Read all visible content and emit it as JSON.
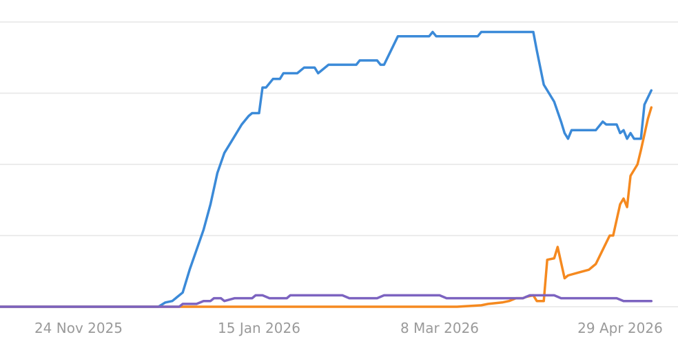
{
  "chart_data": {
    "type": "line",
    "x_axis": {
      "type": "date",
      "range": [
        "2025-10-20",
        "2026-05-08"
      ]
    },
    "ylim": [
      0,
      100
    ],
    "y_gridlines": [
      0,
      25,
      50,
      75,
      100
    ],
    "grid": true,
    "legend": "none",
    "x_ticks": [
      {
        "date": "2025-11-24",
        "label": "24 Nov 2025"
      },
      {
        "date": "2026-01-15",
        "label": "15 Jan 2026"
      },
      {
        "date": "2026-03-08",
        "label": "8 Mar 2026"
      },
      {
        "date": "2026-04-29",
        "label": "29 Apr 2026"
      }
    ],
    "series": [
      {
        "color": "#3b8ad8",
        "points": [
          [
            "2025-10-20",
            0
          ],
          [
            "2025-12-17",
            0
          ],
          [
            "2025-12-19",
            1.5
          ],
          [
            "2025-12-21",
            2
          ],
          [
            "2025-12-24",
            5
          ],
          [
            "2025-12-26",
            13
          ],
          [
            "2025-12-28",
            20
          ],
          [
            "2025-12-30",
            27
          ],
          [
            "2026-01-01",
            36
          ],
          [
            "2026-01-03",
            47
          ],
          [
            "2026-01-05",
            54
          ],
          [
            "2026-01-07",
            58
          ],
          [
            "2026-01-10",
            64
          ],
          [
            "2026-01-12",
            67
          ],
          [
            "2026-01-13",
            68
          ],
          [
            "2026-01-15",
            68
          ],
          [
            "2026-01-16",
            77
          ],
          [
            "2026-01-17",
            77
          ],
          [
            "2026-01-19",
            80
          ],
          [
            "2026-01-21",
            80
          ],
          [
            "2026-01-22",
            82
          ],
          [
            "2026-01-26",
            82
          ],
          [
            "2026-01-28",
            84
          ],
          [
            "2026-01-31",
            84
          ],
          [
            "2026-02-01",
            82
          ],
          [
            "2026-02-04",
            85
          ],
          [
            "2026-02-08",
            85
          ],
          [
            "2026-02-12",
            85
          ],
          [
            "2026-02-13",
            86.5
          ],
          [
            "2026-02-18",
            86.5
          ],
          [
            "2026-02-19",
            85
          ],
          [
            "2026-02-20",
            85
          ],
          [
            "2026-02-24",
            95
          ],
          [
            "2026-03-05",
            95
          ],
          [
            "2026-03-06",
            96.5
          ],
          [
            "2026-03-07",
            95
          ],
          [
            "2026-03-14",
            95
          ],
          [
            "2026-03-19",
            95
          ],
          [
            "2026-03-20",
            96.5
          ],
          [
            "2026-04-02",
            96.5
          ],
          [
            "2026-04-04",
            96.5
          ],
          [
            "2026-04-05",
            90
          ],
          [
            "2026-04-07",
            78
          ],
          [
            "2026-04-10",
            72
          ],
          [
            "2026-04-12",
            65
          ],
          [
            "2026-04-13",
            61
          ],
          [
            "2026-04-14",
            59
          ],
          [
            "2026-04-15",
            62
          ],
          [
            "2026-04-22",
            62
          ],
          [
            "2026-04-24",
            65
          ],
          [
            "2026-04-25",
            64
          ],
          [
            "2026-04-28",
            64
          ],
          [
            "2026-04-29",
            61
          ],
          [
            "2026-04-30",
            62
          ],
          [
            "2026-05-01",
            59
          ],
          [
            "2026-05-02",
            61
          ],
          [
            "2026-05-03",
            59
          ],
          [
            "2026-05-05",
            59
          ],
          [
            "2026-05-06",
            71
          ],
          [
            "2026-05-08",
            76
          ]
        ]
      },
      {
        "color": "#f5891f",
        "points": [
          [
            "2025-10-20",
            0
          ],
          [
            "2026-03-13",
            0
          ],
          [
            "2026-03-20",
            0.5
          ],
          [
            "2026-03-22",
            1
          ],
          [
            "2026-03-26",
            1.5
          ],
          [
            "2026-03-28",
            2
          ],
          [
            "2026-03-30",
            3
          ],
          [
            "2026-04-01",
            3
          ],
          [
            "2026-04-02",
            3.5
          ],
          [
            "2026-04-04",
            4
          ],
          [
            "2026-04-05",
            2
          ],
          [
            "2026-04-07",
            2
          ],
          [
            "2026-04-08",
            16.5
          ],
          [
            "2026-04-10",
            17
          ],
          [
            "2026-04-11",
            21
          ],
          [
            "2026-04-13",
            10
          ],
          [
            "2026-04-14",
            11
          ],
          [
            "2026-04-17",
            12
          ],
          [
            "2026-04-20",
            13
          ],
          [
            "2026-04-21",
            14
          ],
          [
            "2026-04-22",
            15
          ],
          [
            "2026-04-24",
            20
          ],
          [
            "2026-04-26",
            25
          ],
          [
            "2026-04-27",
            25
          ],
          [
            "2026-04-29",
            36
          ],
          [
            "2026-04-30",
            38
          ],
          [
            "2026-05-01",
            35
          ],
          [
            "2026-05-02",
            46
          ],
          [
            "2026-05-04",
            50
          ],
          [
            "2026-05-05",
            55
          ],
          [
            "2026-05-07",
            66
          ],
          [
            "2026-05-08",
            70
          ]
        ]
      },
      {
        "color": "#7c63c0",
        "points": [
          [
            "2025-10-20",
            0
          ],
          [
            "2025-12-23",
            0
          ],
          [
            "2025-12-24",
            1
          ],
          [
            "2025-12-28",
            1
          ],
          [
            "2025-12-30",
            2
          ],
          [
            "2026-01-01",
            2
          ],
          [
            "2026-01-02",
            3
          ],
          [
            "2026-01-04",
            3
          ],
          [
            "2026-01-05",
            2
          ],
          [
            "2026-01-08",
            3
          ],
          [
            "2026-01-13",
            3
          ],
          [
            "2026-01-14",
            4
          ],
          [
            "2026-01-16",
            4
          ],
          [
            "2026-01-18",
            3
          ],
          [
            "2026-01-23",
            3
          ],
          [
            "2026-01-24",
            4
          ],
          [
            "2026-02-08",
            4
          ],
          [
            "2026-02-10",
            3
          ],
          [
            "2026-02-18",
            3
          ],
          [
            "2026-02-20",
            4
          ],
          [
            "2026-03-08",
            4
          ],
          [
            "2026-03-10",
            3
          ],
          [
            "2026-04-01",
            3
          ],
          [
            "2026-04-03",
            4
          ],
          [
            "2026-04-10",
            4
          ],
          [
            "2026-04-12",
            3
          ],
          [
            "2026-04-28",
            3
          ],
          [
            "2026-04-30",
            2
          ],
          [
            "2026-05-08",
            2
          ]
        ]
      }
    ]
  }
}
